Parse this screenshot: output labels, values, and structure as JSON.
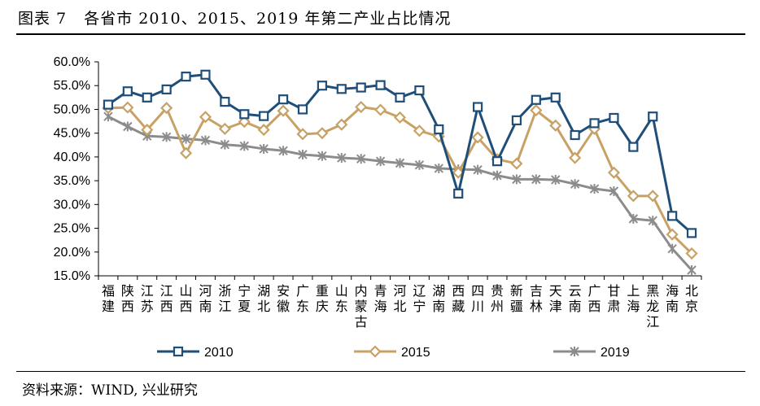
{
  "header": {
    "title": "图表 7   各省市 2010、2015、2019 年第二产业占比情况"
  },
  "footer": {
    "source": "资料来源：WIND, 兴业研究"
  },
  "chart_data": {
    "type": "line",
    "ylim": [
      15,
      60
    ],
    "ytick_step": 5,
    "y_tick_labels": [
      "15.0%",
      "20.0%",
      "25.0%",
      "30.0%",
      "35.0%",
      "40.0%",
      "45.0%",
      "50.0%",
      "55.0%",
      "60.0%"
    ],
    "legend_position": "bottom",
    "grid": false,
    "categories": [
      "福建",
      "陕西",
      "江苏",
      "江西",
      "山西",
      "河南",
      "浙江",
      "宁夏",
      "湖北",
      "安徽",
      "广东",
      "重庆",
      "山东",
      "内蒙古",
      "青海",
      "河北",
      "辽宁",
      "湖南",
      "西藏",
      "四川",
      "贵州",
      "新疆",
      "吉林",
      "天津",
      "云南",
      "广西",
      "甘肃",
      "上海",
      "黑龙江",
      "海南",
      "北京"
    ],
    "series": [
      {
        "name": "2010",
        "color": "#1f4e79",
        "marker": "square",
        "values": [
          51.0,
          53.8,
          52.5,
          54.2,
          56.9,
          57.3,
          51.6,
          49.0,
          48.6,
          52.1,
          50.0,
          55.0,
          54.3,
          54.6,
          55.1,
          52.5,
          54.0,
          45.8,
          32.3,
          50.5,
          39.1,
          47.7,
          52.0,
          52.5,
          44.6,
          47.1,
          48.2,
          42.1,
          48.5,
          27.6,
          24.0
        ]
      },
      {
        "name": "2015",
        "color": "#c8a165",
        "marker": "diamond",
        "values": [
          50.3,
          50.4,
          45.7,
          50.3,
          40.8,
          48.4,
          45.9,
          47.4,
          45.7,
          49.7,
          44.8,
          45.0,
          46.8,
          50.5,
          49.9,
          48.3,
          45.5,
          44.3,
          36.7,
          44.1,
          39.5,
          38.6,
          49.8,
          46.6,
          39.8,
          45.9,
          36.7,
          31.8,
          31.8,
          23.7,
          19.7
        ]
      },
      {
        "name": "2019",
        "color": "#8c8c8c",
        "marker": "asterisk",
        "values": [
          48.5,
          46.4,
          44.4,
          44.2,
          43.8,
          43.5,
          42.6,
          42.3,
          41.7,
          41.3,
          40.5,
          40.2,
          39.8,
          39.6,
          39.1,
          38.7,
          38.3,
          37.6,
          37.4,
          37.3,
          36.1,
          35.3,
          35.3,
          35.2,
          34.3,
          33.3,
          32.8,
          27.0,
          26.6,
          20.7,
          16.2
        ]
      }
    ]
  }
}
